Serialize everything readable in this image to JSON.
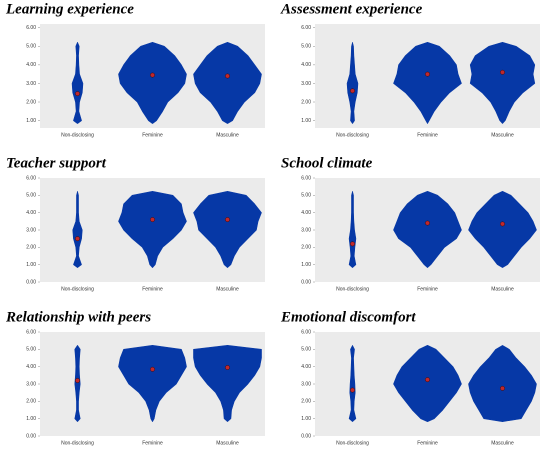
{
  "chart_data": [
    {
      "type": "violin",
      "title": "Learning experience",
      "categories": [
        "Non-disclosing",
        "Feminine",
        "Masculine"
      ],
      "levels": [
        1,
        1.5,
        2,
        2.5,
        3,
        3.5,
        4,
        4.5,
        5
      ],
      "widths": [
        [
          0.12,
          0.04,
          0.06,
          0.14,
          0.16,
          0.06,
          0.04,
          0.03,
          0.05
        ],
        [
          0.12,
          0.3,
          0.45,
          0.75,
          0.95,
          1,
          0.85,
          0.65,
          0.35
        ],
        [
          0.15,
          0.3,
          0.5,
          0.8,
          0.95,
          1,
          0.8,
          0.6,
          0.3
        ]
      ],
      "means": [
        2.45,
        3.45,
        3.4
      ],
      "color": "#0638a6",
      "mean_color": "#c0282d",
      "ylim": [
        0.6,
        6.2
      ],
      "yticks": [
        {
          "value": 1,
          "label": "1.00"
        },
        {
          "value": 2,
          "label": "2.00"
        },
        {
          "value": 3,
          "label": "3.00"
        },
        {
          "value": 4,
          "label": "4.00"
        },
        {
          "value": 5,
          "label": "5.00"
        },
        {
          "value": 6,
          "label": "6.00"
        }
      ]
    },
    {
      "type": "violin",
      "title": "Assessment experience",
      "categories": [
        "Non-disclosing",
        "Feminine",
        "Masculine"
      ],
      "levels": [
        1,
        1.5,
        2,
        2.5,
        3,
        3.5,
        4,
        4.5,
        5
      ],
      "widths": [
        [
          0.06,
          0.04,
          0.08,
          0.14,
          0.16,
          0.08,
          0.06,
          0.04,
          0.02
        ],
        [
          0.05,
          0.2,
          0.4,
          0.65,
          1,
          0.9,
          0.85,
          0.65,
          0.35
        ],
        [
          0.08,
          0.2,
          0.35,
          0.6,
          0.95,
          0.9,
          0.95,
          0.8,
          0.4
        ]
      ],
      "means": [
        2.6,
        3.5,
        3.6
      ],
      "color": "#0638a6",
      "mean_color": "#c0282d",
      "ylim": [
        0.6,
        6.2
      ],
      "yticks": [
        {
          "value": 1,
          "label": "1.00"
        },
        {
          "value": 2,
          "label": "2.00"
        },
        {
          "value": 3,
          "label": "3.00"
        },
        {
          "value": 4,
          "label": "4.00"
        },
        {
          "value": 5,
          "label": "5.00"
        },
        {
          "value": 6,
          "label": "6.00"
        }
      ]
    },
    {
      "type": "violin",
      "title": "Teacher support",
      "categories": [
        "Non-disclosing",
        "Feminine",
        "Masculine"
      ],
      "levels": [
        1,
        1.5,
        2,
        2.5,
        3,
        3.5,
        4,
        4.5,
        5
      ],
      "widths": [
        [
          0.12,
          0.03,
          0.05,
          0.12,
          0.14,
          0.05,
          0.03,
          0.03,
          0.02
        ],
        [
          0.08,
          0.15,
          0.3,
          0.6,
          0.85,
          1,
          0.9,
          0.85,
          0.6
        ],
        [
          0.1,
          0.2,
          0.35,
          0.6,
          0.85,
          0.9,
          1,
          0.8,
          0.55
        ]
      ],
      "means": [
        2.5,
        3.6,
        3.6
      ],
      "color": "#0638a6",
      "mean_color": "#c0282d",
      "ylim": [
        0,
        6
      ],
      "yticks": [
        {
          "value": 0,
          "label": "0.00"
        },
        {
          "value": 1,
          "label": "1.00"
        },
        {
          "value": 2,
          "label": "2.00"
        },
        {
          "value": 3,
          "label": "3.00"
        },
        {
          "value": 4,
          "label": "4.00"
        },
        {
          "value": 5,
          "label": "5.00"
        },
        {
          "value": 6,
          "label": "6.00"
        }
      ]
    },
    {
      "type": "violin",
      "title": "School climate",
      "categories": [
        "Non-disclosing",
        "Feminine",
        "Masculine"
      ],
      "levels": [
        1,
        1.5,
        2,
        2.5,
        3,
        3.5,
        4,
        4.5,
        5
      ],
      "widths": [
        [
          0.1,
          0.05,
          0.07,
          0.1,
          0.06,
          0.04,
          0.03,
          0.02,
          0.01
        ],
        [
          0.1,
          0.3,
          0.5,
          0.85,
          1,
          0.9,
          0.8,
          0.6,
          0.3
        ],
        [
          0.15,
          0.35,
          0.55,
          0.8,
          1,
          0.9,
          0.75,
          0.5,
          0.25
        ]
      ],
      "means": [
        2.2,
        3.4,
        3.35
      ],
      "color": "#0638a6",
      "mean_color": "#c0282d",
      "ylim": [
        0,
        6
      ],
      "yticks": [
        {
          "value": 0,
          "label": "0.00"
        },
        {
          "value": 1,
          "label": "1.00"
        },
        {
          "value": 2,
          "label": "2.00"
        },
        {
          "value": 3,
          "label": "3.00"
        },
        {
          "value": 4,
          "label": "4.00"
        },
        {
          "value": 5,
          "label": "5.00"
        },
        {
          "value": 6,
          "label": "6.00"
        }
      ]
    },
    {
      "type": "violin",
      "title": "Relationship with peers",
      "categories": [
        "Non-disclosing",
        "Feminine",
        "Masculine"
      ],
      "levels": [
        1,
        1.5,
        2,
        2.5,
        3,
        3.5,
        4,
        4.5,
        5
      ],
      "widths": [
        [
          0.08,
          0.03,
          0.03,
          0.05,
          0.08,
          0.06,
          0.05,
          0.06,
          0.08
        ],
        [
          0.05,
          0.1,
          0.2,
          0.4,
          0.7,
          0.85,
          1,
          0.95,
          0.85
        ],
        [
          0.1,
          0.12,
          0.2,
          0.35,
          0.6,
          0.8,
          0.95,
          1,
          1
        ]
      ],
      "means": [
        3.2,
        3.85,
        3.95
      ],
      "color": "#0638a6",
      "mean_color": "#c0282d",
      "ylim": [
        0,
        6
      ],
      "yticks": [
        {
          "value": 0,
          "label": "0.00"
        },
        {
          "value": 1,
          "label": "1.00"
        },
        {
          "value": 2,
          "label": "2.00"
        },
        {
          "value": 3,
          "label": "3.00"
        },
        {
          "value": 4,
          "label": "4.00"
        },
        {
          "value": 5,
          "label": "5.00"
        },
        {
          "value": 6,
          "label": "6.00"
        }
      ]
    },
    {
      "type": "violin",
      "title": "Emotional discomfort",
      "categories": [
        "Non-disclosing",
        "Feminine",
        "Masculine"
      ],
      "levels": [
        1,
        1.5,
        2,
        2.5,
        3,
        3.5,
        4,
        4.5,
        5
      ],
      "widths": [
        [
          0.1,
          0.04,
          0.05,
          0.08,
          0.07,
          0.05,
          0.04,
          0.03,
          0.06
        ],
        [
          0.2,
          0.45,
          0.65,
          0.85,
          1,
          0.9,
          0.75,
          0.5,
          0.25
        ],
        [
          0.55,
          0.7,
          0.85,
          0.95,
          1,
          0.85,
          0.65,
          0.4,
          0.2
        ]
      ],
      "means": [
        2.65,
        3.25,
        2.75
      ],
      "color": "#0638a6",
      "mean_color": "#c0282d",
      "ylim": [
        0,
        6
      ],
      "yticks": [
        {
          "value": 0,
          "label": "0.00"
        },
        {
          "value": 1,
          "label": "1.00"
        },
        {
          "value": 2,
          "label": "2.00"
        },
        {
          "value": 3,
          "label": "3.00"
        },
        {
          "value": 4,
          "label": "4.00"
        },
        {
          "value": 5,
          "label": "5.00"
        },
        {
          "value": 6,
          "label": "6.00"
        }
      ]
    }
  ]
}
